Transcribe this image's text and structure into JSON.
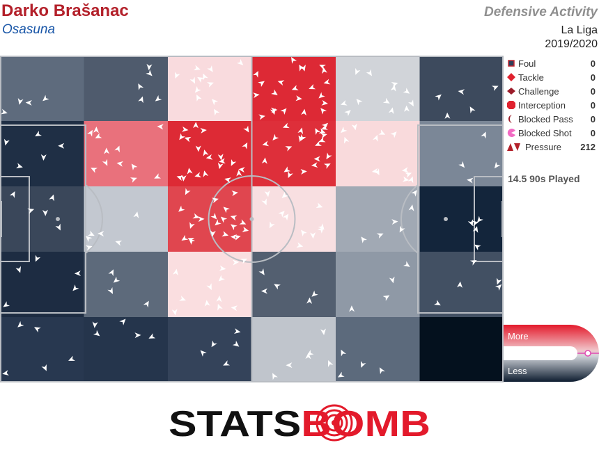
{
  "header": {
    "player": "Darko Brašanac",
    "team": "Osasuna",
    "title": "Defensive Activity",
    "league": "La Liga",
    "season": "2019/2020"
  },
  "legend": [
    {
      "label": "Foul",
      "count": "0",
      "icon": "square-icon"
    },
    {
      "label": "Tackle",
      "count": "0",
      "icon": "diamond-icon"
    },
    {
      "label": "Challenge",
      "count": "0",
      "icon": "wide-diamond-icon"
    },
    {
      "label": "Interception",
      "count": "0",
      "icon": "octagon-icon"
    },
    {
      "label": "Blocked Pass",
      "count": "0",
      "icon": "crescent-icon"
    },
    {
      "label": "Blocked Shot",
      "count": "0",
      "icon": "pacman-icon"
    },
    {
      "label": "Pressure",
      "count": "212",
      "icon": "chevron-pair-icon"
    }
  ],
  "played": "14.5 90s Played",
  "scale": {
    "more": "More",
    "less": "Less"
  },
  "logo": {
    "text": "STATSBOMB",
    "part1": "STATS",
    "part2": "BOMB"
  },
  "colors": {
    "high": "#dc2a35",
    "low": "#04111e",
    "accent": "#e31a2b"
  },
  "chart_data": {
    "type": "heatmap",
    "grid": {
      "rows": 5,
      "cols": 6
    },
    "cells": [
      [
        "#5e6b7d",
        "#4f5b6d",
        "#f9dbde",
        "#dd2935",
        "#d1d4d9",
        "#3d4a5d"
      ],
      [
        "#1f2f45",
        "#e9717c",
        "#dd2a35",
        "#de2f3a",
        "#f9dadc",
        "#7b8797"
      ],
      [
        "#3a475a",
        "#c3c8d0",
        "#e0464f",
        "#f8dfe1",
        "#a1a9b4",
        "#13253b"
      ],
      [
        "#1d2c42",
        "#5d6a7b",
        "#fadee0",
        "#535f70",
        "#8f99a6",
        "#425063"
      ],
      [
        "#283850",
        "#25354c",
        "#34435a",
        "#c0c5cc",
        "#5c6a7c",
        "#04111e"
      ]
    ],
    "pressure_count": 212
  }
}
